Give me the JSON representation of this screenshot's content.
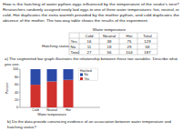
{
  "intro": [
    "How is the hatching of water python eggs influenced by the temperature of the snake's nest?",
    "Researchers randomly assigned newly laid eggs to one of three water temperatures: hot, neutral, or",
    "cold. Hot duplicates the extra warmth provided by the mother python, and cold duplicates the",
    "absence of the mother. The two-way table shows the results of the experiment."
  ],
  "table": {
    "header": "Water temperature",
    "row_header": "Hatching status",
    "columns": [
      "Cold",
      "Neutral",
      "Hot",
      "Total"
    ],
    "rows": [
      {
        "label": "Yes",
        "cells": [
          16,
          38,
          75,
          129
        ]
      },
      {
        "label": "No",
        "cells": [
          11,
          18,
          29,
          58
        ]
      },
      {
        "label": "Total",
        "cells": [
          27,
          56,
          104,
          187
        ]
      }
    ]
  },
  "question_a": [
    "a) The segmented bar graph illustrates the relationship between these two variables. Describe what",
    "you see."
  ],
  "chart_data": {
    "type": "bar",
    "stacked": true,
    "x_label": "Water temperature",
    "y_label": "Percent",
    "legend_title": "Hatched",
    "legend": "upper right",
    "categories": [
      "Cold",
      "Neutral",
      "Hot"
    ],
    "series": [
      {
        "name": "Yes",
        "color": "#d0312d",
        "values": [
          59.3,
          67.9,
          72.1
        ]
      },
      {
        "name": "No",
        "color": "#2b4aa8",
        "values": [
          40.7,
          32.1,
          27.9
        ]
      }
    ],
    "ylim": [
      0,
      100
    ],
    "yticks": [
      0,
      20,
      40,
      60,
      80,
      100
    ]
  },
  "question_b": [
    "b) Do the data provide convincing evidence of an association between water temperature and",
    "hatching status?"
  ]
}
